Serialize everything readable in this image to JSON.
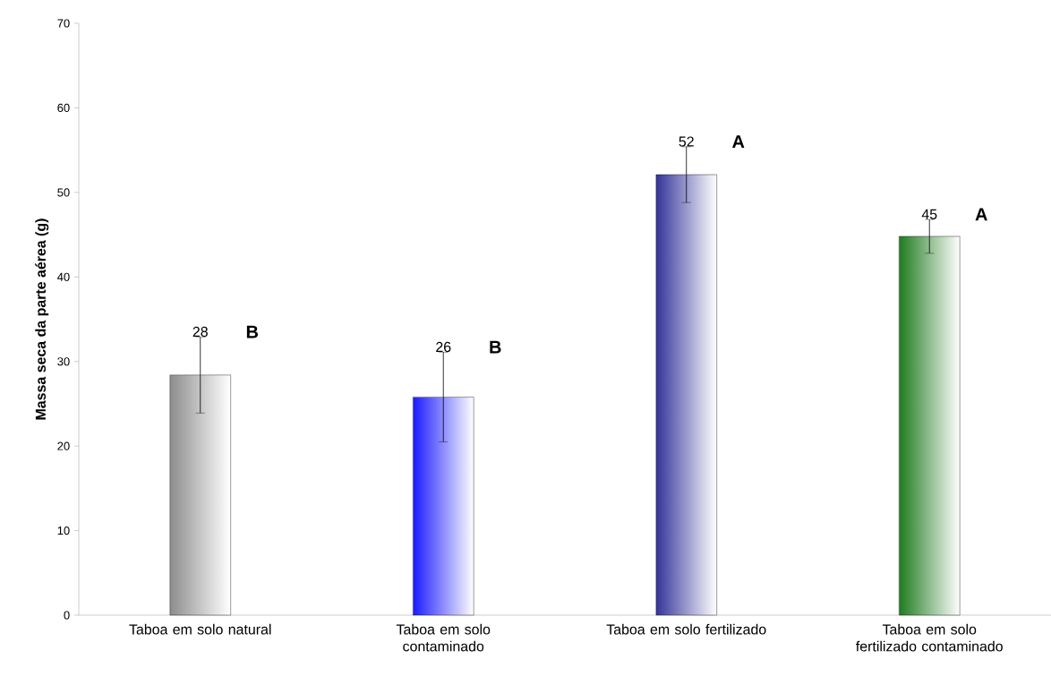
{
  "chart_data": {
    "type": "bar",
    "ylabel": "Massa seca da parte aérea (g)",
    "categories": [
      "Taboa em solo natural",
      "Taboa em solo contaminado",
      "Taboa em solo fertilizado",
      "Taboa em solo fertilizado contaminado"
    ],
    "values": [
      28.4,
      25.8,
      52.1,
      44.8
    ],
    "errors": [
      4.5,
      5.3,
      3.3,
      2.0
    ],
    "value_labels": [
      "28",
      "26",
      "52",
      "45"
    ],
    "colors": [
      "#8c8c8c",
      "#1a1aff",
      "#333399",
      "#1e7b1e"
    ],
    "ylim": [
      0,
      70
    ],
    "yticks": [
      0,
      10,
      20,
      30,
      40,
      50,
      60,
      70
    ],
    "annotations": [
      "B",
      "B",
      "A",
      "A"
    ],
    "grid": false
  }
}
